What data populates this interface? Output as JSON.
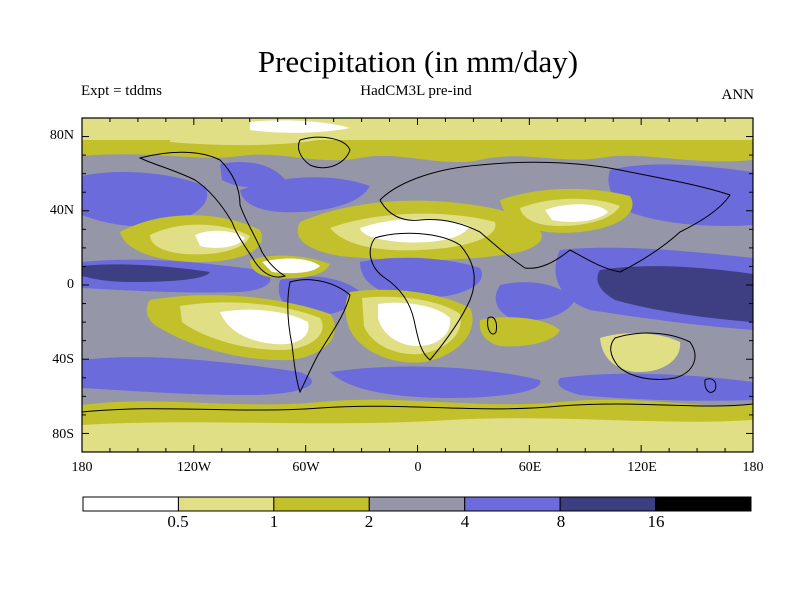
{
  "title": "Precipitation (in mm/day)",
  "experiment": "Expt = tddms",
  "model": "HadCM3L pre-ind",
  "season": "ANN",
  "colors": {
    "level_0": "#ffffff",
    "level_1": "#e0df86",
    "level_2": "#c2c12c",
    "level_3": "#9597a8",
    "level_4": "#6b6bdc",
    "level_5": "#3e3f82",
    "level_6": "#000000",
    "coast": "#000000"
  },
  "axes": {
    "y_ticks": [
      "80N",
      "40N",
      "0",
      "40S",
      "80S"
    ],
    "x_ticks": [
      "180",
      "120W",
      "60W",
      "0",
      "60E",
      "120E",
      "180"
    ]
  },
  "colorbar": {
    "thresholds": [
      "0.5",
      "1",
      "2",
      "4",
      "8",
      "16"
    ]
  }
}
